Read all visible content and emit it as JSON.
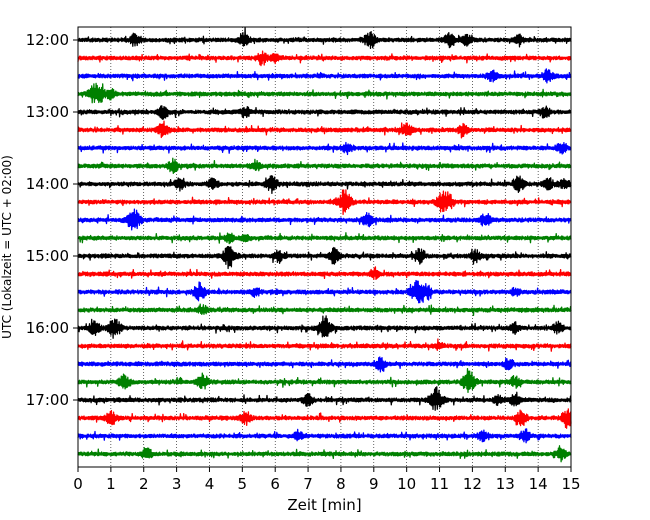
{
  "chart_data": {
    "type": "line",
    "title": "",
    "xlabel": "Zeit  [min]",
    "ylabel": "UTC (Lokalzeit = UTC + 02:00)",
    "xlim": [
      0,
      15
    ],
    "x_ticks": [
      "0",
      "1",
      "2",
      "3",
      "4",
      "5",
      "6",
      "7",
      "8",
      "9",
      "10",
      "11",
      "12",
      "13",
      "14",
      "15"
    ],
    "y_ticks": [
      "12:00",
      "13:00",
      "14:00",
      "15:00",
      "16:00",
      "17:00"
    ],
    "grid": {
      "x": "dotted",
      "y": false
    },
    "legend": "none",
    "trace_colors": [
      "#000000",
      "#ff0000",
      "#0000ff",
      "#008000"
    ],
    "series": [
      {
        "start": "12:00",
        "color": "#000000",
        "events": [
          [
            1.75,
            6
          ],
          [
            5.05,
            7
          ],
          [
            8.9,
            8
          ],
          [
            11.3,
            7
          ],
          [
            11.8,
            6
          ],
          [
            13.4,
            5
          ]
        ]
      },
      {
        "start": "12:15",
        "color": "#ff0000",
        "events": [
          [
            5.6,
            6
          ],
          [
            6.0,
            4
          ]
        ]
      },
      {
        "start": "12:30",
        "color": "#0000ff",
        "events": [
          [
            12.6,
            5
          ],
          [
            14.3,
            6
          ]
        ]
      },
      {
        "start": "12:45",
        "color": "#008000",
        "events": [
          [
            0.5,
            8
          ],
          [
            0.7,
            5
          ],
          [
            1.0,
            4
          ]
        ]
      },
      {
        "start": "13:00",
        "color": "#000000",
        "events": [
          [
            2.6,
            6
          ],
          [
            5.1,
            5
          ],
          [
            14.2,
            5
          ]
        ]
      },
      {
        "start": "13:15",
        "color": "#ff0000",
        "events": [
          [
            2.6,
            7
          ],
          [
            10.0,
            7
          ],
          [
            11.7,
            5
          ]
        ]
      },
      {
        "start": "13:30",
        "color": "#0000ff",
        "events": [
          [
            8.2,
            5
          ],
          [
            14.7,
            5
          ]
        ]
      },
      {
        "start": "13:45",
        "color": "#008000",
        "events": [
          [
            2.9,
            6
          ],
          [
            5.4,
            5
          ]
        ]
      },
      {
        "start": "14:00",
        "color": "#000000",
        "events": [
          [
            3.1,
            5
          ],
          [
            4.1,
            5
          ],
          [
            5.9,
            8
          ],
          [
            13.4,
            7
          ],
          [
            14.3,
            6
          ],
          [
            14.8,
            5
          ]
        ]
      },
      {
        "start": "14:15",
        "color": "#ff0000",
        "events": [
          [
            8.1,
            11
          ],
          [
            11.1,
            9
          ],
          [
            11.3,
            5
          ]
        ]
      },
      {
        "start": "14:30",
        "color": "#0000ff",
        "events": [
          [
            1.7,
            10
          ],
          [
            8.8,
            6
          ],
          [
            12.4,
            6
          ]
        ]
      },
      {
        "start": "14:45",
        "color": "#008000",
        "events": [
          [
            4.6,
            4
          ],
          [
            5.1,
            3
          ]
        ]
      },
      {
        "start": "15:00",
        "color": "#000000",
        "events": [
          [
            4.6,
            10
          ],
          [
            6.1,
            6
          ],
          [
            7.8,
            7
          ],
          [
            10.4,
            7
          ],
          [
            12.1,
            5
          ]
        ]
      },
      {
        "start": "15:15",
        "color": "#ff0000",
        "events": [
          [
            9.0,
            4
          ]
        ]
      },
      {
        "start": "15:30",
        "color": "#0000ff",
        "events": [
          [
            3.7,
            8
          ],
          [
            5.4,
            4
          ],
          [
            10.3,
            10
          ],
          [
            10.6,
            6
          ],
          [
            13.3,
            4
          ]
        ]
      },
      {
        "start": "15:45",
        "color": "#008000",
        "events": [
          [
            3.8,
            4
          ]
        ]
      },
      {
        "start": "16:00",
        "color": "#000000",
        "events": [
          [
            0.5,
            6
          ],
          [
            1.1,
            9
          ],
          [
            7.5,
            11
          ],
          [
            13.3,
            5
          ],
          [
            14.6,
            5
          ]
        ]
      },
      {
        "start": "16:15",
        "color": "#ff0000",
        "events": [
          [
            11.0,
            3
          ]
        ]
      },
      {
        "start": "16:30",
        "color": "#0000ff",
        "events": [
          [
            9.2,
            6
          ],
          [
            13.1,
            5
          ]
        ]
      },
      {
        "start": "16:45",
        "color": "#008000",
        "events": [
          [
            1.4,
            7
          ],
          [
            3.8,
            7
          ],
          [
            11.9,
            10
          ],
          [
            13.3,
            5
          ]
        ]
      },
      {
        "start": "17:00",
        "color": "#000000",
        "events": [
          [
            7.0,
            5
          ],
          [
            10.9,
            11
          ],
          [
            12.8,
            4
          ],
          [
            13.3,
            5
          ]
        ]
      },
      {
        "start": "17:15",
        "color": "#ff0000",
        "events": [
          [
            1.0,
            6
          ],
          [
            5.1,
            6
          ],
          [
            13.5,
            7
          ],
          [
            14.9,
            9
          ]
        ]
      },
      {
        "start": "17:30",
        "color": "#0000ff",
        "events": [
          [
            6.7,
            4
          ],
          [
            12.3,
            5
          ],
          [
            13.6,
            6
          ]
        ]
      },
      {
        "start": "17:45",
        "color": "#008000",
        "events": [
          [
            2.1,
            5
          ],
          [
            14.7,
            6
          ]
        ]
      }
    ]
  }
}
